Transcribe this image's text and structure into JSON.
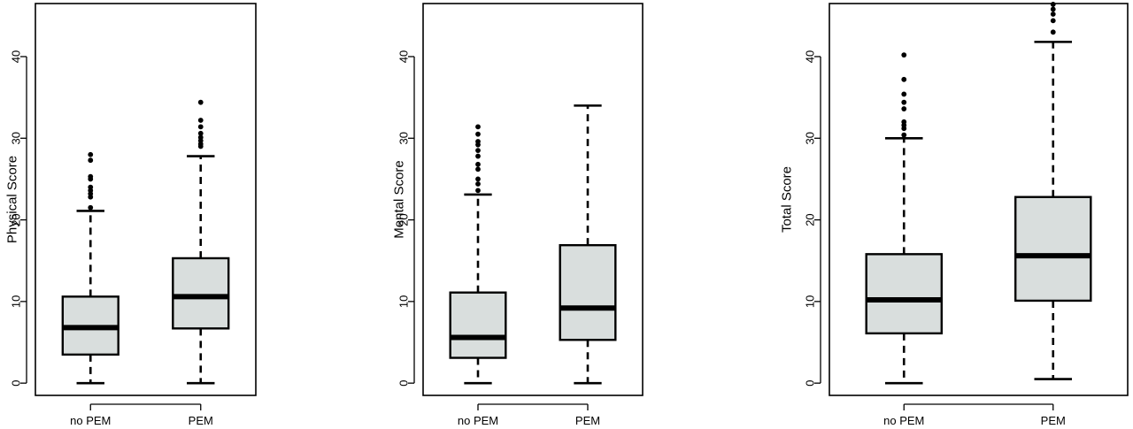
{
  "chart_data": [
    {
      "type": "boxplot",
      "ylabel": "Physical Score",
      "xlabel": "",
      "categories": [
        "no PEM",
        "PEM"
      ],
      "ylim": [
        -1.5,
        46.5
      ],
      "yticks": [
        0,
        10,
        20,
        30,
        40
      ],
      "box_fill": "#d9dedd",
      "boxes": [
        {
          "label": "no PEM",
          "min": 0,
          "q1": 3.5,
          "median": 6.8,
          "q3": 10.6,
          "max": 21.1,
          "outliers": [
            21.5,
            22.8,
            23.2,
            23.6,
            24.0,
            25.0,
            25.3,
            27.3,
            28.0
          ]
        },
        {
          "label": "PEM",
          "min": 0,
          "q1": 6.7,
          "median": 10.6,
          "q3": 15.3,
          "max": 27.8,
          "outliers": [
            29.0,
            29.3,
            29.7,
            30.1,
            30.6,
            31.4,
            32.2,
            34.4
          ]
        }
      ]
    },
    {
      "type": "boxplot",
      "ylabel": "Mental Score",
      "xlabel": "",
      "categories": [
        "no PEM",
        "PEM"
      ],
      "ylim": [
        -1.5,
        46.5
      ],
      "yticks": [
        0,
        10,
        20,
        30,
        40
      ],
      "box_fill": "#d9dedd",
      "boxes": [
        {
          "label": "no PEM",
          "min": 0,
          "q1": 3.1,
          "median": 5.6,
          "q3": 11.1,
          "max": 23.1,
          "outliers": [
            23.6,
            24.4,
            25.0,
            26.2,
            26.8,
            27.8,
            28.5,
            29.2,
            29.6,
            30.5,
            31.4
          ]
        },
        {
          "label": "PEM",
          "min": 0,
          "q1": 5.3,
          "median": 9.2,
          "q3": 16.9,
          "max": 34.0,
          "outliers": []
        }
      ]
    },
    {
      "type": "boxplot",
      "ylabel": "Total Score",
      "xlabel": "",
      "categories": [
        "no PEM",
        "PEM"
      ],
      "ylim": [
        -1.5,
        46.5
      ],
      "yticks": [
        0,
        10,
        20,
        30,
        40
      ],
      "box_fill": "#d9dedd",
      "boxes": [
        {
          "label": "no PEM",
          "min": 0,
          "q1": 6.1,
          "median": 10.2,
          "q3": 15.8,
          "max": 30.0,
          "outliers": [
            30.4,
            31.2,
            31.6,
            32.0,
            33.6,
            34.4,
            35.4,
            37.2,
            40.2
          ]
        },
        {
          "label": "PEM",
          "min": 0.5,
          "q1": 10.1,
          "median": 15.6,
          "q3": 22.8,
          "max": 41.8,
          "outliers": [
            43.0,
            44.4,
            45.2,
            45.8,
            46.4
          ]
        }
      ]
    }
  ]
}
